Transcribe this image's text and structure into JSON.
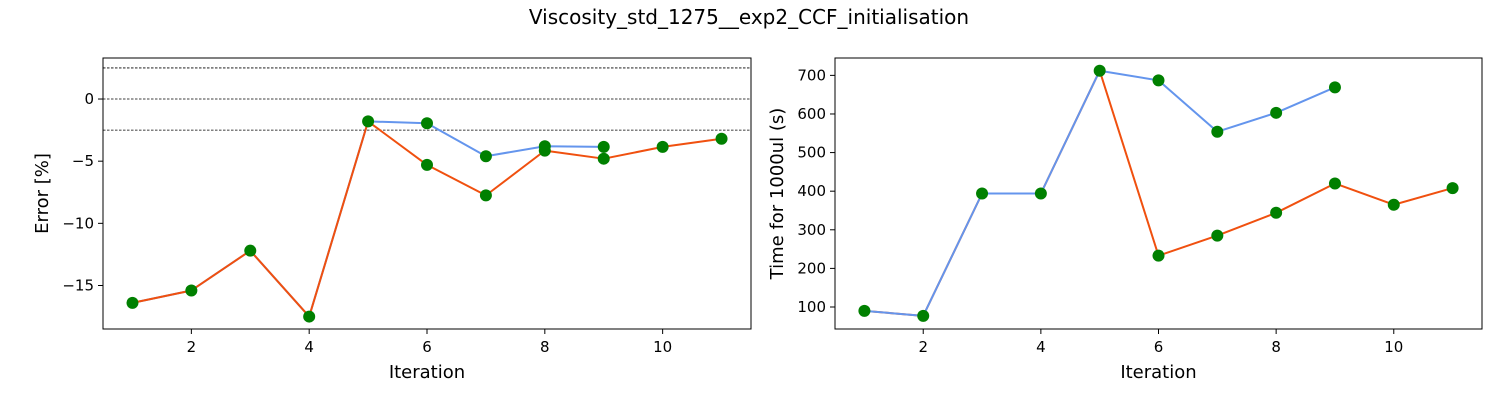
{
  "figure": {
    "title": "Viscosity_std_1275__exp2_CCF_initialisation"
  },
  "colors": {
    "marker": "#008000",
    "series_blue": "#6495ED",
    "series_orange": "#F0500F",
    "reference_line": "#000000"
  },
  "chart_data": [
    {
      "type": "line",
      "xlabel": "Iteration",
      "ylabel": "Error [%]",
      "xlim": [
        0.5,
        11.5
      ],
      "ylim": [
        -18.5,
        3.3
      ],
      "xticks": [
        2,
        4,
        6,
        8,
        10
      ],
      "yticks": [
        -15,
        -10,
        -5,
        0
      ],
      "reference_lines": [
        2.5,
        0,
        -2.5
      ],
      "grid": false,
      "series": [
        {
          "color": "#6495ED",
          "x": [
            1,
            2,
            3,
            4,
            5,
            6,
            7,
            8,
            9
          ],
          "y": [
            -16.4,
            -15.4,
            -12.2,
            -17.5,
            -1.8,
            -1.95,
            -4.6,
            -3.8,
            -3.85
          ]
        },
        {
          "color": "#F0500F",
          "x": [
            1,
            2,
            3,
            4,
            5,
            6,
            7,
            8,
            9,
            10,
            11
          ],
          "y": [
            -16.4,
            -15.4,
            -12.2,
            -17.5,
            -1.8,
            -5.3,
            -7.75,
            -4.15,
            -4.8,
            -3.85,
            -3.2
          ]
        }
      ],
      "markers": {
        "x": [
          1,
          2,
          3,
          4,
          5,
          6,
          7,
          8,
          9,
          10,
          11,
          6,
          7,
          8,
          9
        ],
        "y": [
          -16.4,
          -15.4,
          -12.2,
          -17.5,
          -1.8,
          -5.3,
          -7.75,
          -4.15,
          -4.8,
          -3.85,
          -3.2,
          -1.95,
          -4.6,
          -3.8,
          -3.85
        ]
      }
    },
    {
      "type": "line",
      "xlabel": "Iteration",
      "ylabel": "Time for 1000ul (s)",
      "xlim": [
        0.5,
        11.5
      ],
      "ylim": [
        43,
        745
      ],
      "xticks": [
        2,
        4,
        6,
        8,
        10
      ],
      "yticks": [
        100,
        200,
        300,
        400,
        500,
        600,
        700
      ],
      "grid": false,
      "series": [
        {
          "color": "#F0500F",
          "x": [
            1,
            2,
            3,
            4,
            5,
            6,
            7,
            8,
            9,
            10,
            11
          ],
          "y": [
            90,
            77,
            394,
            394,
            712,
            233,
            285,
            344,
            420,
            365,
            408
          ]
        },
        {
          "color": "#6495ED",
          "x": [
            1,
            2,
            3,
            4,
            5,
            6,
            7,
            8,
            9
          ],
          "y": [
            90,
            77,
            394,
            394,
            712,
            687,
            554,
            603,
            669
          ]
        }
      ],
      "markers": {
        "x": [
          1,
          2,
          3,
          4,
          5,
          6,
          7,
          8,
          9,
          10,
          11,
          6,
          7,
          8,
          9
        ],
        "y": [
          90,
          77,
          394,
          394,
          712,
          233,
          285,
          344,
          420,
          365,
          408,
          687,
          554,
          603,
          669
        ]
      }
    }
  ]
}
